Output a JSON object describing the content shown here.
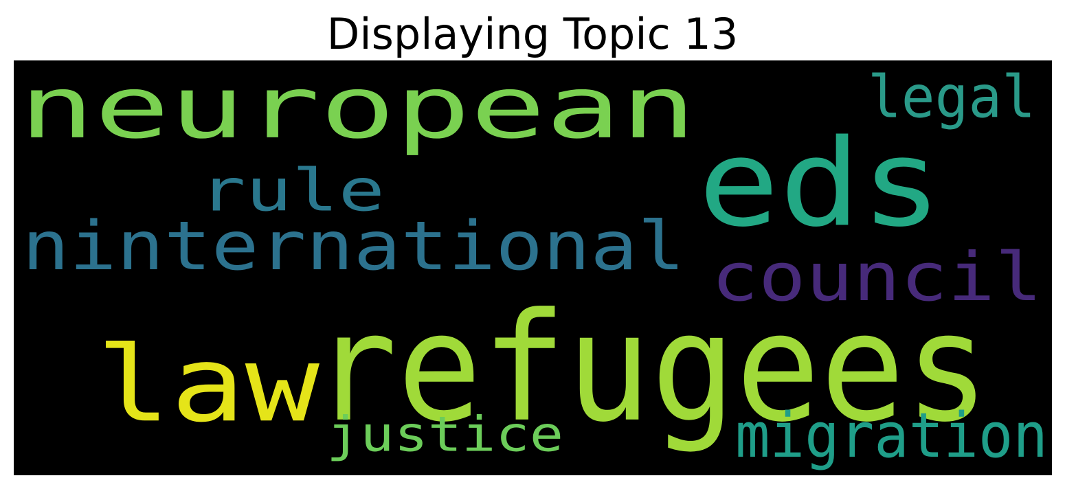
{
  "title": "Displaying Topic 13",
  "cloud": {
    "background": "#000000",
    "words": [
      {
        "text": "neuropean",
        "color": "#7ad151"
      },
      {
        "text": "eds",
        "color": "#22a884"
      },
      {
        "text": "legal",
        "color": "#2a9a89"
      },
      {
        "text": "rule",
        "color": "#2a788e"
      },
      {
        "text": "ninternational",
        "color": "#2c728e"
      },
      {
        "text": "council",
        "color": "#472a7a"
      },
      {
        "text": "law",
        "color": "#e5e419"
      },
      {
        "text": "refugees",
        "color": "#a0da39"
      },
      {
        "text": "justice",
        "color": "#6ccd5a"
      },
      {
        "text": "migration",
        "color": "#1f9e89"
      }
    ]
  }
}
